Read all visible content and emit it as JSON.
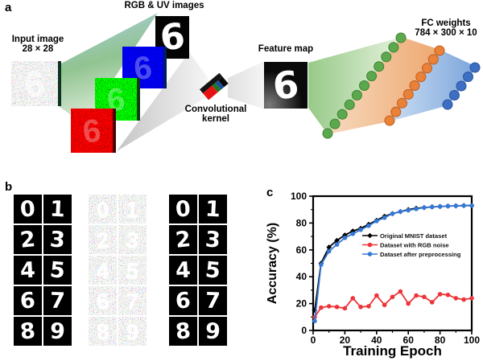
{
  "panels": {
    "a": {
      "letter": "a",
      "input_label_1": "Input image",
      "input_label_2": "28 × 28",
      "rgb_uv_label": "RGB & UV images",
      "kernel_label_1": "Convolutional",
      "kernel_label_2": "kernel",
      "feature_map_label": "Feature map",
      "fc_label_1": "FC weights",
      "fc_label_2": "784 × 300 × 10",
      "digit": "6",
      "network": {
        "green_count": 11,
        "green_color": "#5ca84e",
        "green_edge": "#3e8232",
        "orange_count": 9,
        "orange_color": "#ea8138",
        "orange_edge": "#bf5c1c",
        "blue_count": 5,
        "blue_color": "#3c6fc4",
        "blue_edge": "#2a539d"
      }
    },
    "b": {
      "letter": "b",
      "digits": [
        "0",
        "1",
        "2",
        "3",
        "4",
        "5",
        "6",
        "7",
        "8",
        "9"
      ]
    },
    "c": {
      "letter": "c"
    }
  },
  "chart_data": {
    "type": "line",
    "title": "",
    "xlabel": "Training Epoch",
    "ylabel": "Accuracy (%)",
    "xlim": [
      0,
      100
    ],
    "ylim": [
      0,
      100
    ],
    "xticks": [
      0,
      20,
      40,
      60,
      80,
      100
    ],
    "yticks": [
      0,
      20,
      40,
      60,
      80,
      100
    ],
    "minor_xticks": [
      10,
      30,
      50,
      70,
      90
    ],
    "minor_yticks": [
      10,
      30,
      50,
      70,
      90
    ],
    "grid": false,
    "legend_position": "middle-right",
    "x": [
      1,
      5,
      10,
      15,
      20,
      25,
      30,
      35,
      40,
      45,
      50,
      55,
      60,
      65,
      70,
      75,
      80,
      85,
      90,
      95,
      100
    ],
    "series": [
      {
        "name": "Original MNIST dataset",
        "color": "#000000",
        "marker": "diamond",
        "values": [
          15,
          50,
          62,
          67,
          71,
          74,
          76,
          79,
          82,
          85,
          87,
          88.5,
          90,
          91,
          91.5,
          92,
          92.3,
          92.6,
          92.8,
          93,
          93
        ]
      },
      {
        "name": "Dataset with RGB noise",
        "color": "#ed3438",
        "marker": "circle",
        "values": [
          10,
          17,
          18,
          17.5,
          16.5,
          24,
          17.5,
          18,
          26,
          19,
          25,
          29,
          20,
          26,
          25,
          21,
          27,
          26.5,
          24,
          23,
          24
        ]
      },
      {
        "name": "Dataset after preprocessing",
        "color": "#3578d6",
        "marker": "circle",
        "values": [
          7,
          49,
          59,
          64,
          69,
          72,
          75,
          78,
          81.5,
          84,
          87,
          88.5,
          89.5,
          90.5,
          91.5,
          92,
          92.3,
          92.6,
          92.8,
          93,
          93
        ]
      }
    ]
  }
}
